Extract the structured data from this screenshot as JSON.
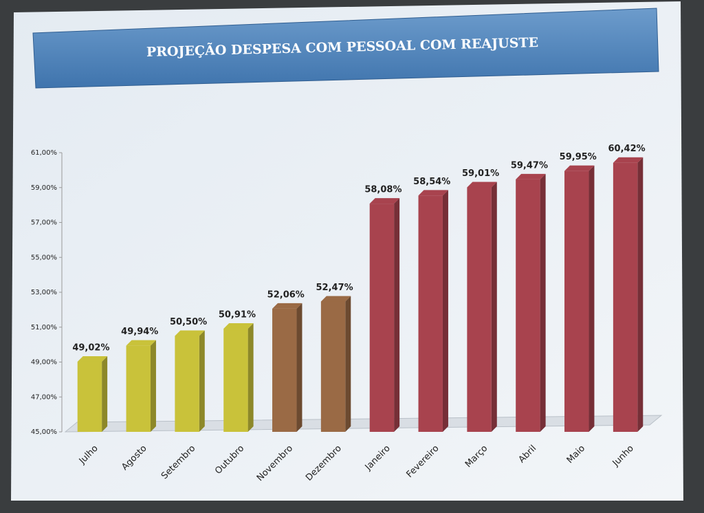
{
  "chart_data": {
    "type": "bar",
    "title": "PROJEÇÃO DESPESA COM PESSOAL COM REAJUSTE",
    "categories": [
      "Julho",
      "Agosto",
      "Setembro",
      "Outubro",
      "Novembro",
      "Dezembro",
      "Janeiro",
      "Fevereiro",
      "Março",
      "Abril",
      "Maio",
      "Junho"
    ],
    "values": [
      49.02,
      49.94,
      50.5,
      50.91,
      52.06,
      52.47,
      58.08,
      58.54,
      59.01,
      59.47,
      59.95,
      60.42
    ],
    "value_labels": [
      "49,02%",
      "49,94%",
      "50,50%",
      "50,91%",
      "52,06%",
      "52,47%",
      "58,08%",
      "58,54%",
      "59,01%",
      "59,47%",
      "59,95%",
      "60,42%"
    ],
    "colors": [
      "#c9c23a",
      "#c9c23a",
      "#c9c23a",
      "#c9c23a",
      "#9a6a45",
      "#9a6a45",
      "#a8434e",
      "#a8434e",
      "#a8434e",
      "#a8434e",
      "#a8434e",
      "#a8434e"
    ],
    "ylim": [
      45,
      61
    ],
    "yticks": [
      {
        "value": 45,
        "label": "45,00%"
      },
      {
        "value": 47,
        "label": "47,00%"
      },
      {
        "value": 49,
        "label": "49,00%"
      },
      {
        "value": 51,
        "label": "51,00%"
      },
      {
        "value": 53,
        "label": "53,00%"
      },
      {
        "value": 55,
        "label": "55,00%"
      },
      {
        "value": 57,
        "label": "57,00%"
      },
      {
        "value": 59,
        "label": "59,00%"
      },
      {
        "value": 61,
        "label": "61,00%"
      }
    ]
  }
}
